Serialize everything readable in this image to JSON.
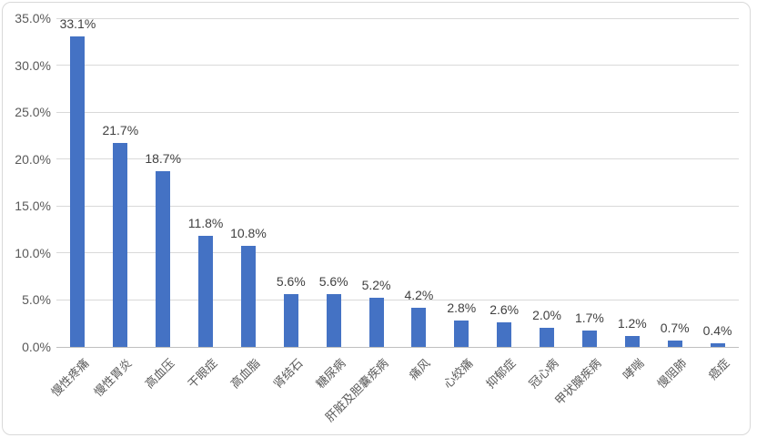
{
  "chart_data": {
    "type": "bar",
    "title": "",
    "xlabel": "",
    "ylabel": "",
    "legend": "none",
    "grid": true,
    "categories": [
      "慢性疼痛",
      "慢性胃炎",
      "高血压",
      "干眼症",
      "高血脂",
      "肾结石",
      "糖尿病",
      "肝脏及胆囊疾病",
      "痛风",
      "心绞痛",
      "抑郁症",
      "冠心病",
      "甲状腺疾病",
      "哮喘",
      "慢阻肺",
      "癌症"
    ],
    "values": [
      33.1,
      21.7,
      18.7,
      11.8,
      10.8,
      5.6,
      5.6,
      5.2,
      4.2,
      2.8,
      2.6,
      2.0,
      1.7,
      1.2,
      0.7,
      0.4
    ],
    "value_labels": [
      "33.1%",
      "21.7%",
      "18.7%",
      "11.8%",
      "10.8%",
      "5.6%",
      "5.6%",
      "5.2%",
      "4.2%",
      "2.8%",
      "2.6%",
      "2.0%",
      "1.7%",
      "1.2%",
      "0.7%",
      "0.4%"
    ],
    "y_ticks": [
      "0.0%",
      "5.0%",
      "10.0%",
      "15.0%",
      "20.0%",
      "25.0%",
      "30.0%",
      "35.0%"
    ],
    "ylim": [
      0,
      35
    ],
    "colors": {
      "bar": "#4472C4",
      "gridline": "#D9D9D9",
      "axis_line": "#BFBFBF",
      "tick_text": "#595959",
      "value_text": "#404040",
      "border": "#D9D9D9",
      "background": "#FFFFFF"
    }
  }
}
